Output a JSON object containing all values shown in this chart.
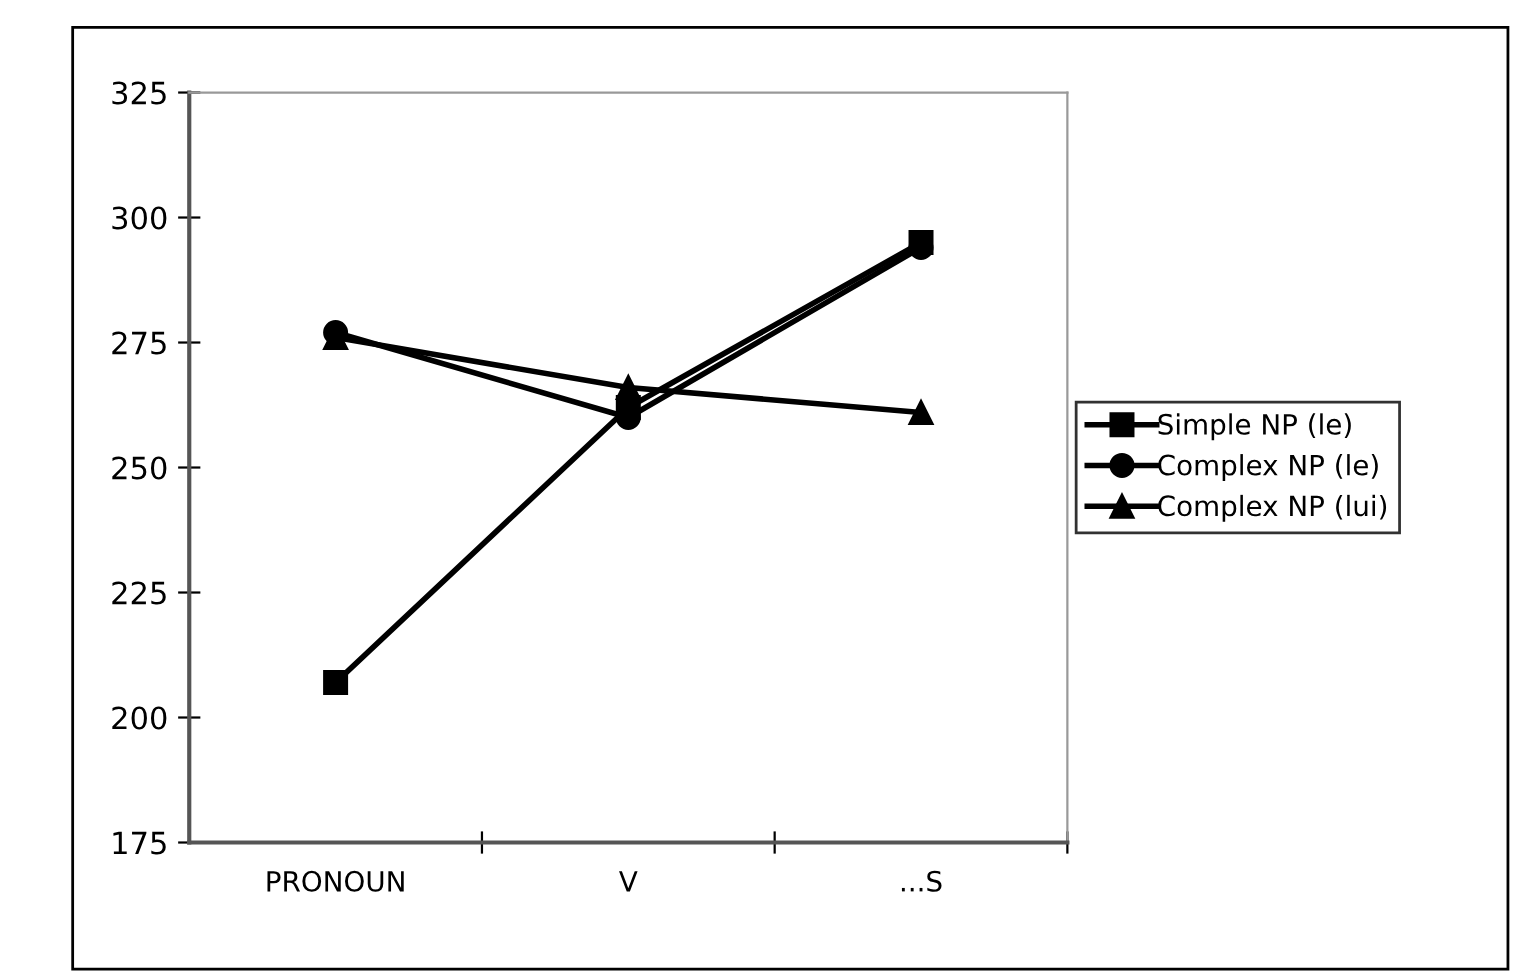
{
  "chart_data": {
    "type": "line",
    "categories": [
      "PRONOUN",
      "V",
      "...S"
    ],
    "series": [
      {
        "name": "Simple NP (le)",
        "color": "#000000",
        "values": [
          207,
          262,
          295
        ],
        "marker": "square"
      },
      {
        "name": "Complex NP (le)",
        "color": "#000000",
        "values": [
          277,
          260,
          294
        ],
        "marker": "circle"
      },
      {
        "name": "Complex NP (lui)",
        "color": "#000000",
        "values": [
          276,
          266,
          261
        ],
        "marker": "triangle"
      }
    ],
    "ylim": [
      175,
      325
    ],
    "yticks": [
      175,
      200,
      225,
      250,
      275,
      300,
      325
    ],
    "grid": false,
    "legend": "right",
    "line_style": "solid"
  }
}
